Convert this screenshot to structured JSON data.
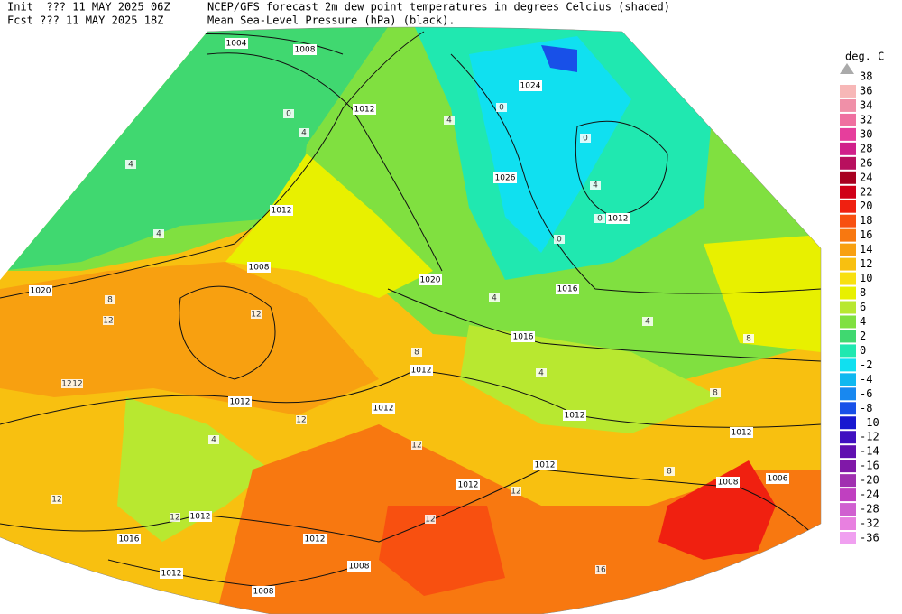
{
  "header": {
    "init": "Init  ??? 11 MAY 2025 06Z",
    "fcst": "Fcst ??? 11 MAY 2025 18Z",
    "title": "NCEP/GFS forecast 2m dew point temperatures in degrees Celcius (shaded)",
    "subtitle": "Mean Sea-Level Pressure (hPa) (black)."
  },
  "legend": {
    "title": "deg. C",
    "levels": [
      38,
      36,
      34,
      32,
      30,
      28,
      26,
      24,
      22,
      20,
      18,
      16,
      14,
      12,
      10,
      8,
      6,
      4,
      2,
      0,
      -2,
      -4,
      -6,
      -8,
      -10,
      -12,
      -14,
      -16,
      -20,
      -24,
      -28,
      -32,
      -36
    ],
    "colors": [
      "#f7b7b7",
      "#f090a8",
      "#ef70a0",
      "#e63e9c",
      "#d0208a",
      "#b8105e",
      "#a80020",
      "#d00018",
      "#f02010",
      "#f85010",
      "#f87810",
      "#f8a010",
      "#f8c010",
      "#f8e010",
      "#e8f000",
      "#b8e830",
      "#80e040",
      "#40d870",
      "#20e8b0",
      "#10e0f0",
      "#10b8f0",
      "#1888f0",
      "#1850e8",
      "#1818d0",
      "#4010c0",
      "#6010b0",
      "#8018a8",
      "#a030b0",
      "#c040c0",
      "#d060d0",
      "#e880e0",
      "#f0a0f0"
    ]
  },
  "map": {
    "isobar_labels": [
      "1004",
      "1008",
      "1012",
      "1024",
      "1026",
      "1012",
      "1012",
      "1008",
      "1020",
      "1016",
      "1016",
      "1020",
      "1012",
      "1012",
      "1012",
      "1012",
      "1012",
      "1012",
      "1012",
      "1008",
      "1006",
      "1012",
      "1016",
      "1012",
      "1008",
      "1012",
      "1008"
    ],
    "dewpoint_labels": [
      "0",
      "4",
      "4",
      "4",
      "0",
      "4",
      "0",
      "4",
      "0",
      "0",
      "8",
      "12",
      "12",
      "12",
      "12",
      "8",
      "4",
      "4",
      "8",
      "4",
      "8",
      "4",
      "12",
      "12",
      "12",
      "12",
      "12",
      "8",
      "16",
      "12"
    ]
  }
}
